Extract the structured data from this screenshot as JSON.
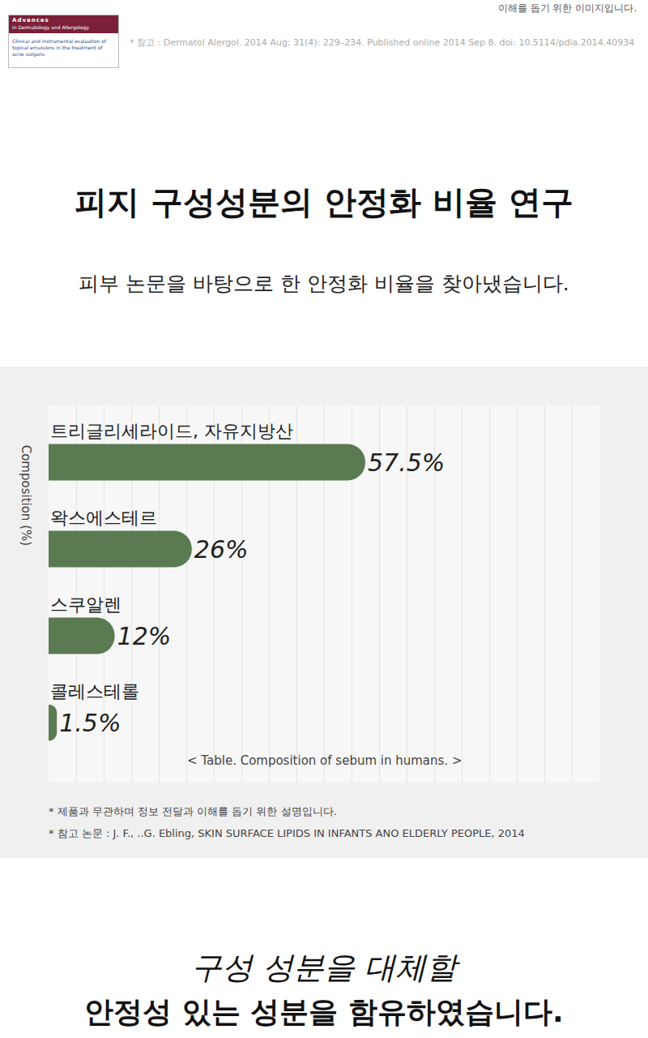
{
  "header": {
    "note": "이해를 돕기 위한 이미지입니다.",
    "journal": "Advances",
    "journal_subtitle": "in Dermatology and Allergology",
    "article": "Clinical and instrumental evaluation of topical emulsions in the treatment of acne vulgaris",
    "reference": "* 참고 : Dermatol Alergol. 2014 Aug; 31(4): 229–234. Published online 2014 Sep 8. doi: 10.5114/pdia.2014.40934"
  },
  "title": "피지 구성성분의 안정화 비율 연구",
  "subtitle": "피부 논문을 바탕으로 한 안정화 비율을 찾아냈습니다.",
  "chart_data": {
    "type": "bar",
    "orientation": "horizontal",
    "ylabel": "Composition (%)",
    "categories": [
      "트리글리세라이드, 자유지방산",
      "왁스에스테르",
      "스쿠알렌",
      "콜레스테롤"
    ],
    "values": [
      57.5,
      26,
      12,
      1.5
    ],
    "value_labels": [
      "57.5%",
      "26%",
      "12%",
      "1.5%"
    ],
    "data_labels": true,
    "color": "#5a7b52",
    "xlim": [
      0,
      100
    ],
    "xticks": [
      0,
      5,
      10,
      15,
      20,
      25,
      30,
      35,
      40,
      45,
      50,
      55,
      60,
      65,
      70,
      75,
      80,
      85,
      90,
      95,
      100
    ],
    "grid": true,
    "tick_labels": false,
    "caption": "< Table. Composition of sebum in humans. >"
  },
  "footnotes": [
    "* 제품과 무관하며 정보 전달과 이해를 돕기 위한 설명입니다.",
    "* 참고 논문 : J. F.,  ..G. Ebling, SKIN SURFACE LIPIDS IN INFANTS ANO ELDERLY PEOPLE, 2014"
  ],
  "closing": [
    "구성 성분을 대체할",
    "안정성 있는 성분을 함유하였습니다."
  ]
}
